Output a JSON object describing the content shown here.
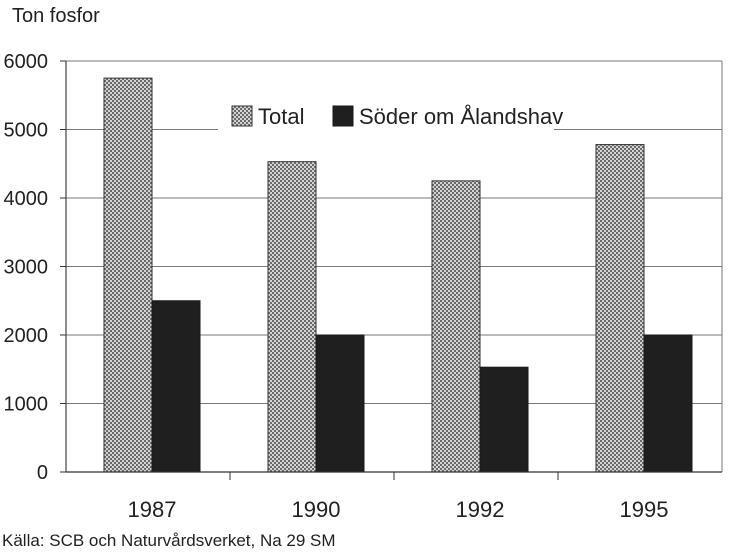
{
  "chart_data": {
    "type": "bar",
    "title": "",
    "ylabel": "Ton fosfor",
    "xlabel": "",
    "categories": [
      "1987",
      "1990",
      "1992",
      "1995"
    ],
    "series": [
      {
        "name": "Total",
        "values": [
          5750,
          4530,
          4250,
          4780
        ],
        "color": "#b8b8b8",
        "pattern": "crosshatch"
      },
      {
        "name": "Söder om Ålandshav",
        "values": [
          2500,
          2000,
          1530,
          2000
        ],
        "color": "#1f1f1f"
      }
    ],
    "ylim": [
      0,
      6000
    ],
    "yticks": [
      0,
      1000,
      2000,
      3000,
      4000,
      5000,
      6000
    ],
    "grid": true,
    "legend_position": "top-center",
    "source": "Källa: SCB och Naturvårdsverket, Na 29 SM"
  }
}
